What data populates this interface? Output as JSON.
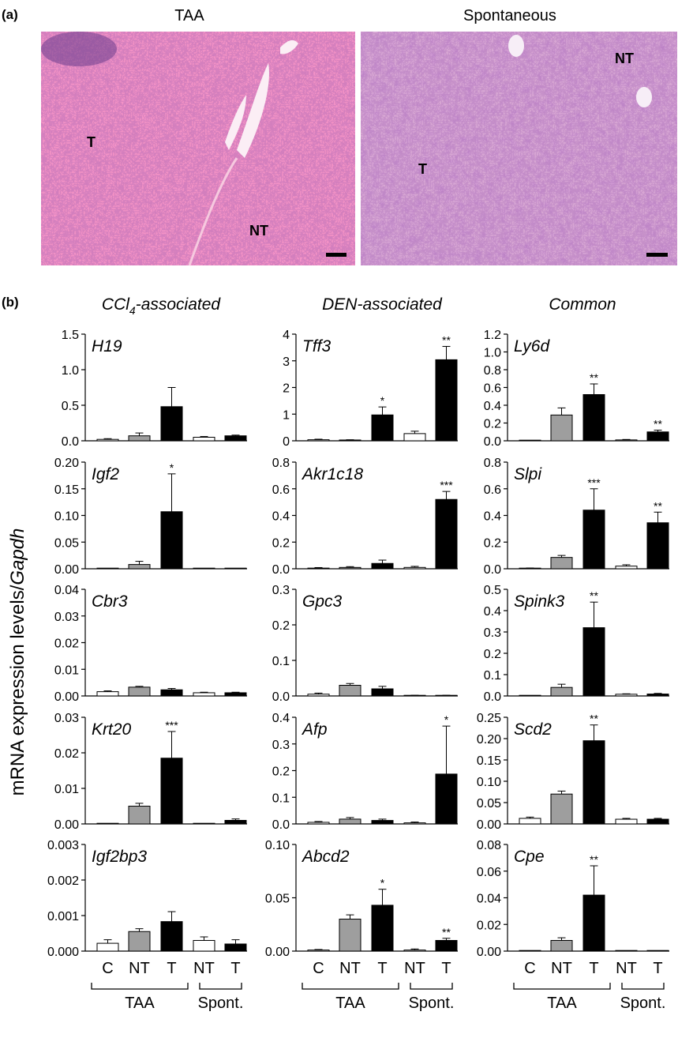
{
  "panel_a": {
    "label": "(a)",
    "images": [
      {
        "title": "TAA",
        "regions": [
          "T",
          "NT"
        ],
        "scale_bar": "scale-bar"
      },
      {
        "title": "Spontaneous",
        "regions": [
          "T",
          "NT"
        ],
        "scale_bar": "scale-bar"
      }
    ]
  },
  "panel_b": {
    "label": "(b)",
    "y_axis_label": "mRNA expression levels/Gapdh",
    "column_titles": [
      {
        "text": "CCl",
        "sub": "4",
        "rest": "-associated"
      },
      {
        "text": "DEN-associated",
        "sub": "",
        "rest": ""
      },
      {
        "text": "Common",
        "sub": "",
        "rest": ""
      }
    ],
    "categories": [
      "C",
      "NT",
      "T",
      "NT",
      "T"
    ],
    "groups": [
      "TAA",
      "Spont."
    ],
    "bar_colors": [
      "#ffffff",
      "#9e9e9e",
      "#000000",
      "#ffffff",
      "#000000"
    ]
  },
  "chart_data": [
    {
      "type": "bar",
      "gene": "H19",
      "col": 0,
      "row": 0,
      "ylim": [
        0,
        1.5
      ],
      "ticks": [
        "0.0",
        "0.5",
        "1.0",
        "1.5"
      ],
      "tickvals": [
        0,
        0.5,
        1.0,
        1.5
      ],
      "categories": [
        "C",
        "NT",
        "T",
        "NT",
        "T"
      ],
      "values": [
        0.02,
        0.07,
        0.48,
        0.05,
        0.07
      ],
      "errors": [
        0.01,
        0.04,
        0.27,
        0.01,
        0.01
      ],
      "significance": [
        "",
        "",
        "",
        "",
        ""
      ]
    },
    {
      "type": "bar",
      "gene": "Igf2",
      "col": 0,
      "row": 1,
      "ylim": [
        0,
        0.2
      ],
      "ticks": [
        "0.00",
        "0.05",
        "0.10",
        "0.15",
        "0.20"
      ],
      "tickvals": [
        0,
        0.05,
        0.1,
        0.15,
        0.2
      ],
      "categories": [
        "C",
        "NT",
        "T",
        "NT",
        "T"
      ],
      "values": [
        0,
        0.008,
        0.107,
        0,
        0
      ],
      "errors": [
        0,
        0.006,
        0.071,
        0,
        0
      ],
      "significance": [
        "",
        "",
        "*",
        "",
        ""
      ]
    },
    {
      "type": "bar",
      "gene": "Cbr3",
      "col": 0,
      "row": 2,
      "ylim": [
        0,
        0.04
      ],
      "ticks": [
        "0.00",
        "0.01",
        "0.02",
        "0.03",
        "0.04"
      ],
      "tickvals": [
        0,
        0.01,
        0.02,
        0.03,
        0.04
      ],
      "categories": [
        "C",
        "NT",
        "T",
        "NT",
        "T"
      ],
      "values": [
        0.0016,
        0.0033,
        0.0023,
        0.0012,
        0.0012
      ],
      "errors": [
        0.0003,
        0.0003,
        0.0005,
        0.0002,
        0.0002
      ],
      "significance": [
        "",
        "",
        "",
        "",
        ""
      ]
    },
    {
      "type": "bar",
      "gene": "Krt20",
      "col": 0,
      "row": 3,
      "ylim": [
        0,
        0.03
      ],
      "ticks": [
        "0.00",
        "0.01",
        "0.02",
        "0.03"
      ],
      "tickvals": [
        0,
        0.01,
        0.02,
        0.03
      ],
      "categories": [
        "C",
        "NT",
        "T",
        "NT",
        "T"
      ],
      "values": [
        0,
        0.005,
        0.0185,
        0,
        0.001
      ],
      "errors": [
        0,
        0.0008,
        0.0075,
        0,
        0.0004
      ],
      "significance": [
        "",
        "",
        "***",
        "",
        ""
      ]
    },
    {
      "type": "bar",
      "gene": "Igf2bp3",
      "col": 0,
      "row": 4,
      "ylim": [
        0,
        0.003
      ],
      "ticks": [
        "0.000",
        "0.001",
        "0.002",
        "0.003"
      ],
      "tickvals": [
        0,
        0.001,
        0.002,
        0.003
      ],
      "categories": [
        "C",
        "NT",
        "T",
        "NT",
        "T"
      ],
      "values": [
        0.00022,
        0.00055,
        0.00083,
        0.0003,
        0.0002
      ],
      "errors": [
        0.0001,
        8e-05,
        0.00028,
        0.0001,
        0.00012
      ],
      "significance": [
        "",
        "",
        "",
        "",
        ""
      ]
    },
    {
      "type": "bar",
      "gene": "Tff3",
      "col": 1,
      "row": 0,
      "ylim": [
        0,
        4
      ],
      "ticks": [
        "0",
        "1",
        "2",
        "3",
        "4"
      ],
      "tickvals": [
        0,
        1,
        2,
        3,
        4
      ],
      "categories": [
        "C",
        "NT",
        "T",
        "NT",
        "T"
      ],
      "values": [
        0.04,
        0.03,
        0.97,
        0.27,
        3.04
      ],
      "errors": [
        0.02,
        0.01,
        0.3,
        0.09,
        0.5
      ],
      "significance": [
        "",
        "",
        "*",
        "",
        "**"
      ]
    },
    {
      "type": "bar",
      "gene": "Akr1c18",
      "col": 1,
      "row": 1,
      "ylim": [
        0,
        0.8
      ],
      "ticks": [
        "0.0",
        "0.2",
        "0.4",
        "0.6",
        "0.8"
      ],
      "tickvals": [
        0,
        0.2,
        0.4,
        0.6,
        0.8
      ],
      "categories": [
        "C",
        "NT",
        "T",
        "NT",
        "T"
      ],
      "values": [
        0.005,
        0.01,
        0.04,
        0.01,
        0.52
      ],
      "errors": [
        0.004,
        0.006,
        0.025,
        0.008,
        0.06
      ],
      "significance": [
        "",
        "",
        "",
        "",
        "***"
      ]
    },
    {
      "type": "bar",
      "gene": "Gpc3",
      "col": 1,
      "row": 2,
      "ylim": [
        0,
        0.3
      ],
      "ticks": [
        "0.0",
        "0.1",
        "0.2",
        "0.3"
      ],
      "tickvals": [
        0,
        0.1,
        0.2,
        0.3
      ],
      "categories": [
        "C",
        "NT",
        "T",
        "NT",
        "T"
      ],
      "values": [
        0.005,
        0.03,
        0.02,
        0.001,
        0.001
      ],
      "errors": [
        0.003,
        0.005,
        0.007,
        0.001,
        0.001
      ],
      "significance": [
        "",
        "",
        "",
        "",
        ""
      ]
    },
    {
      "type": "bar",
      "gene": "Afp",
      "col": 1,
      "row": 3,
      "ylim": [
        0,
        0.4
      ],
      "ticks": [
        "0.0",
        "0.1",
        "0.2",
        "0.3",
        "0.4"
      ],
      "tickvals": [
        0,
        0.1,
        0.2,
        0.3,
        0.4
      ],
      "categories": [
        "C",
        "NT",
        "T",
        "NT",
        "T"
      ],
      "values": [
        0.006,
        0.018,
        0.013,
        0.004,
        0.187
      ],
      "errors": [
        0.003,
        0.006,
        0.005,
        0.003,
        0.18
      ],
      "significance": [
        "",
        "",
        "",
        "",
        "*"
      ]
    },
    {
      "type": "bar",
      "gene": "Abcd2",
      "col": 1,
      "row": 4,
      "ylim": [
        0,
        0.1
      ],
      "ticks": [
        "0.00",
        "0.05",
        "0.10"
      ],
      "tickvals": [
        0,
        0.05,
        0.1
      ],
      "categories": [
        "C",
        "NT",
        "T",
        "NT",
        "T"
      ],
      "values": [
        0.001,
        0.03,
        0.043,
        0.001,
        0.01
      ],
      "errors": [
        0.0005,
        0.004,
        0.015,
        0.001,
        0.002
      ],
      "significance": [
        "",
        "",
        "*",
        "",
        "**"
      ]
    },
    {
      "type": "bar",
      "gene": "Ly6d",
      "col": 2,
      "row": 0,
      "ylim": [
        0,
        1.2
      ],
      "ticks": [
        "0.0",
        "0.2",
        "0.4",
        "0.6",
        "0.8",
        "1.0",
        "1.2"
      ],
      "tickvals": [
        0,
        0.2,
        0.4,
        0.6,
        0.8,
        1.0,
        1.2
      ],
      "categories": [
        "C",
        "NT",
        "T",
        "NT",
        "T"
      ],
      "values": [
        0,
        0.29,
        0.52,
        0.01,
        0.1
      ],
      "errors": [
        0,
        0.08,
        0.12,
        0.005,
        0.02
      ],
      "significance": [
        "",
        "",
        "**",
        "",
        "**"
      ]
    },
    {
      "type": "bar",
      "gene": "Slpi",
      "col": 2,
      "row": 1,
      "ylim": [
        0,
        0.8
      ],
      "ticks": [
        "0.0",
        "0.2",
        "0.4",
        "0.6",
        "0.8"
      ],
      "tickvals": [
        0,
        0.2,
        0.4,
        0.6,
        0.8
      ],
      "categories": [
        "C",
        "NT",
        "T",
        "NT",
        "T"
      ],
      "values": [
        0.004,
        0.085,
        0.44,
        0.02,
        0.345
      ],
      "errors": [
        0.002,
        0.015,
        0.16,
        0.01,
        0.08
      ],
      "significance": [
        "",
        "",
        "***",
        "",
        "**"
      ]
    },
    {
      "type": "bar",
      "gene": "Spink3",
      "col": 2,
      "row": 2,
      "ylim": [
        0,
        0.5
      ],
      "ticks": [
        "0.0",
        "0.1",
        "0.2",
        "0.3",
        "0.4",
        "0.5"
      ],
      "tickvals": [
        0,
        0.1,
        0.2,
        0.3,
        0.4,
        0.5
      ],
      "categories": [
        "C",
        "NT",
        "T",
        "NT",
        "T"
      ],
      "values": [
        0,
        0.04,
        0.32,
        0.008,
        0.009
      ],
      "errors": [
        0,
        0.015,
        0.12,
        0.002,
        0.003
      ],
      "significance": [
        "",
        "",
        "**",
        "",
        ""
      ]
    },
    {
      "type": "bar",
      "gene": "Scd2",
      "col": 2,
      "row": 3,
      "ylim": [
        0,
        0.25
      ],
      "ticks": [
        "0.00",
        "0.05",
        "0.10",
        "0.15",
        "0.20",
        "0.25"
      ],
      "tickvals": [
        0,
        0.05,
        0.1,
        0.15,
        0.2,
        0.25
      ],
      "categories": [
        "C",
        "NT",
        "T",
        "NT",
        "T"
      ],
      "values": [
        0.013,
        0.07,
        0.195,
        0.011,
        0.011
      ],
      "errors": [
        0.003,
        0.007,
        0.037,
        0.002,
        0.002
      ],
      "significance": [
        "",
        "",
        "**",
        "",
        ""
      ]
    },
    {
      "type": "bar",
      "gene": "Cpe",
      "col": 2,
      "row": 4,
      "ylim": [
        0,
        0.08
      ],
      "ticks": [
        "0.00",
        "0.02",
        "0.04",
        "0.06",
        "0.08"
      ],
      "tickvals": [
        0,
        0.02,
        0.04,
        0.06,
        0.08
      ],
      "categories": [
        "C",
        "NT",
        "T",
        "NT",
        "T"
      ],
      "values": [
        0,
        0.008,
        0.042,
        0,
        0
      ],
      "errors": [
        0,
        0.002,
        0.022,
        0,
        0
      ],
      "significance": [
        "",
        "",
        "**",
        "",
        ""
      ]
    }
  ]
}
